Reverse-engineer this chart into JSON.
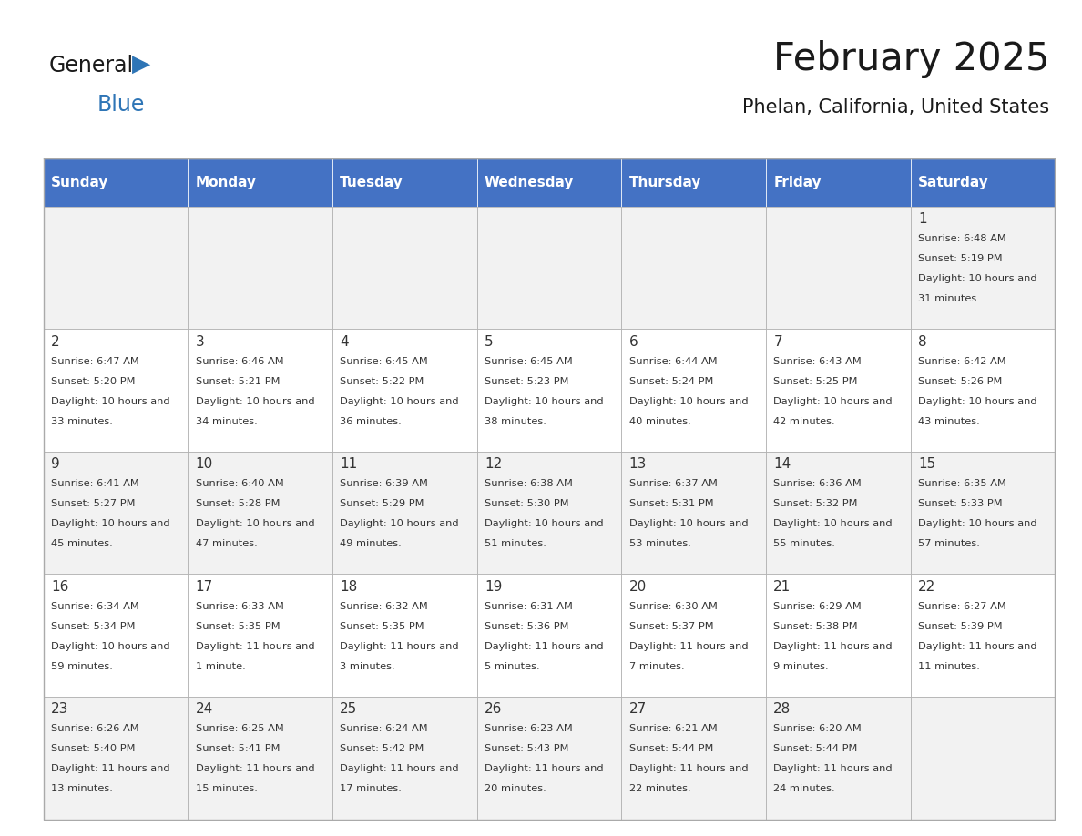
{
  "title": "February 2025",
  "subtitle": "Phelan, California, United States",
  "days_of_week": [
    "Sunday",
    "Monday",
    "Tuesday",
    "Wednesday",
    "Thursday",
    "Friday",
    "Saturday"
  ],
  "header_bg": "#4472C4",
  "header_text": "#FFFFFF",
  "cell_bg_even": "#F2F2F2",
  "cell_bg_odd": "#FFFFFF",
  "cell_border": "#AAAAAA",
  "day_num_color": "#333333",
  "text_color": "#333333",
  "title_color": "#1a1a1a",
  "logo_general_color": "#1a1a1a",
  "logo_blue_color": "#2E75B6",
  "calendar_data": [
    [
      null,
      null,
      null,
      null,
      null,
      null,
      {
        "day": 1,
        "sunrise": "6:48 AM",
        "sunset": "5:19 PM",
        "daylight": "10 hours and 31 minutes."
      }
    ],
    [
      {
        "day": 2,
        "sunrise": "6:47 AM",
        "sunset": "5:20 PM",
        "daylight": "10 hours and 33 minutes."
      },
      {
        "day": 3,
        "sunrise": "6:46 AM",
        "sunset": "5:21 PM",
        "daylight": "10 hours and 34 minutes."
      },
      {
        "day": 4,
        "sunrise": "6:45 AM",
        "sunset": "5:22 PM",
        "daylight": "10 hours and 36 minutes."
      },
      {
        "day": 5,
        "sunrise": "6:45 AM",
        "sunset": "5:23 PM",
        "daylight": "10 hours and 38 minutes."
      },
      {
        "day": 6,
        "sunrise": "6:44 AM",
        "sunset": "5:24 PM",
        "daylight": "10 hours and 40 minutes."
      },
      {
        "day": 7,
        "sunrise": "6:43 AM",
        "sunset": "5:25 PM",
        "daylight": "10 hours and 42 minutes."
      },
      {
        "day": 8,
        "sunrise": "6:42 AM",
        "sunset": "5:26 PM",
        "daylight": "10 hours and 43 minutes."
      }
    ],
    [
      {
        "day": 9,
        "sunrise": "6:41 AM",
        "sunset": "5:27 PM",
        "daylight": "10 hours and 45 minutes."
      },
      {
        "day": 10,
        "sunrise": "6:40 AM",
        "sunset": "5:28 PM",
        "daylight": "10 hours and 47 minutes."
      },
      {
        "day": 11,
        "sunrise": "6:39 AM",
        "sunset": "5:29 PM",
        "daylight": "10 hours and 49 minutes."
      },
      {
        "day": 12,
        "sunrise": "6:38 AM",
        "sunset": "5:30 PM",
        "daylight": "10 hours and 51 minutes."
      },
      {
        "day": 13,
        "sunrise": "6:37 AM",
        "sunset": "5:31 PM",
        "daylight": "10 hours and 53 minutes."
      },
      {
        "day": 14,
        "sunrise": "6:36 AM",
        "sunset": "5:32 PM",
        "daylight": "10 hours and 55 minutes."
      },
      {
        "day": 15,
        "sunrise": "6:35 AM",
        "sunset": "5:33 PM",
        "daylight": "10 hours and 57 minutes."
      }
    ],
    [
      {
        "day": 16,
        "sunrise": "6:34 AM",
        "sunset": "5:34 PM",
        "daylight": "10 hours and 59 minutes."
      },
      {
        "day": 17,
        "sunrise": "6:33 AM",
        "sunset": "5:35 PM",
        "daylight": "11 hours and 1 minute."
      },
      {
        "day": 18,
        "sunrise": "6:32 AM",
        "sunset": "5:35 PM",
        "daylight": "11 hours and 3 minutes."
      },
      {
        "day": 19,
        "sunrise": "6:31 AM",
        "sunset": "5:36 PM",
        "daylight": "11 hours and 5 minutes."
      },
      {
        "day": 20,
        "sunrise": "6:30 AM",
        "sunset": "5:37 PM",
        "daylight": "11 hours and 7 minutes."
      },
      {
        "day": 21,
        "sunrise": "6:29 AM",
        "sunset": "5:38 PM",
        "daylight": "11 hours and 9 minutes."
      },
      {
        "day": 22,
        "sunrise": "6:27 AM",
        "sunset": "5:39 PM",
        "daylight": "11 hours and 11 minutes."
      }
    ],
    [
      {
        "day": 23,
        "sunrise": "6:26 AM",
        "sunset": "5:40 PM",
        "daylight": "11 hours and 13 minutes."
      },
      {
        "day": 24,
        "sunrise": "6:25 AM",
        "sunset": "5:41 PM",
        "daylight": "11 hours and 15 minutes."
      },
      {
        "day": 25,
        "sunrise": "6:24 AM",
        "sunset": "5:42 PM",
        "daylight": "11 hours and 17 minutes."
      },
      {
        "day": 26,
        "sunrise": "6:23 AM",
        "sunset": "5:43 PM",
        "daylight": "11 hours and 20 minutes."
      },
      {
        "day": 27,
        "sunrise": "6:21 AM",
        "sunset": "5:44 PM",
        "daylight": "11 hours and 22 minutes."
      },
      {
        "day": 28,
        "sunrise": "6:20 AM",
        "sunset": "5:44 PM",
        "daylight": "11 hours and 24 minutes."
      },
      null
    ]
  ]
}
